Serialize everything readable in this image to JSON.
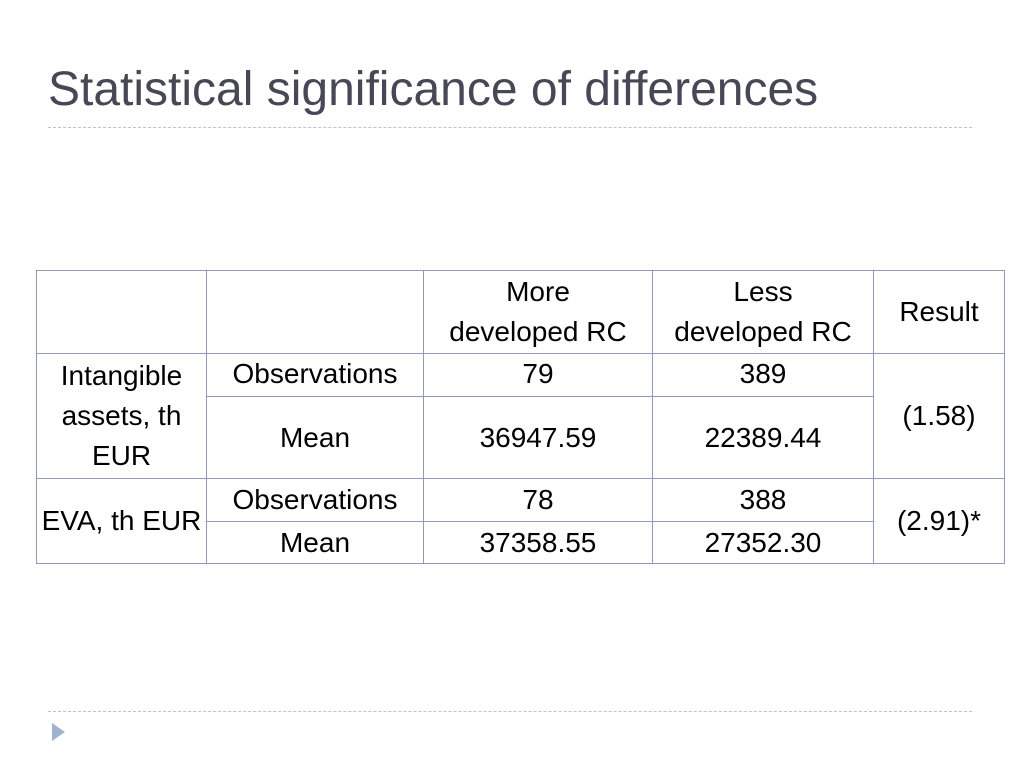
{
  "header": {
    "title": "Statistical significance of differences"
  },
  "table": {
    "columns": [
      "More\ndeveloped RC",
      "Less\ndeveloped RC",
      "Result"
    ],
    "groups": [
      {
        "label": "Intangible assets, th EUR",
        "result": "(1.58)",
        "rows": [
          {
            "stat": "Observations",
            "more": "79",
            "less": "389"
          },
          {
            "stat": "Mean",
            "more": "36947.59",
            "less": "22389.44"
          }
        ]
      },
      {
        "label": "EVA, th EUR",
        "result": "(2.91)*",
        "rows": [
          {
            "stat": "Observations",
            "more": "78",
            "less": "388"
          },
          {
            "stat": "Mean",
            "more": "37358.55",
            "less": "27352.30"
          }
        ]
      }
    ]
  }
}
